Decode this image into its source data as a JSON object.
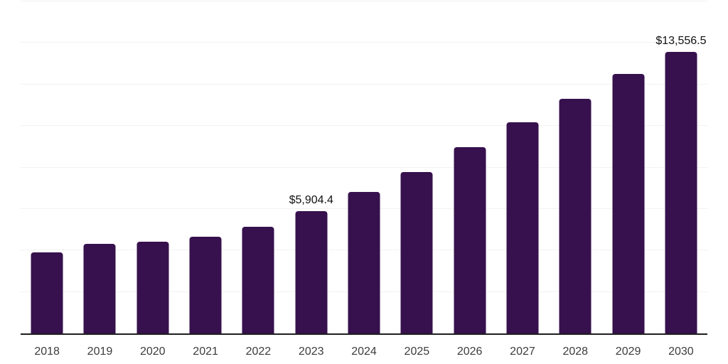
{
  "chart_data": {
    "type": "bar",
    "title": "",
    "xlabel": "",
    "ylabel": "",
    "categories": [
      "2018",
      "2019",
      "2020",
      "2021",
      "2022",
      "2023",
      "2024",
      "2025",
      "2026",
      "2027",
      "2028",
      "2029",
      "2030"
    ],
    "values": [
      3910,
      4320,
      4430,
      4670,
      5150,
      5904.4,
      6830,
      7790,
      8990,
      10160,
      11320,
      12490,
      13556.5
    ],
    "value_labels": [
      "",
      "",
      "",
      "",
      "",
      "$5,904.4",
      "",
      "",
      "",
      "",
      "",
      "",
      "$13,556.5"
    ],
    "ylim": [
      0,
      16000
    ],
    "gridline_step": 2000,
    "grid": true,
    "legend_position": "none",
    "labeled_points": [
      {
        "category": "2023",
        "label": "$5,904.4",
        "value": 5904.4
      },
      {
        "category": "2030",
        "label": "$13,556.5",
        "value": 13556.5
      }
    ]
  },
  "style": {
    "bar_color": "#36114D",
    "gridline_color": "#F2F2F2",
    "axis_color": "#1F1F1F",
    "value_label_color": "#111111",
    "tick_label_color": "#3C3C3C",
    "background_color": "#FFFFFF"
  }
}
